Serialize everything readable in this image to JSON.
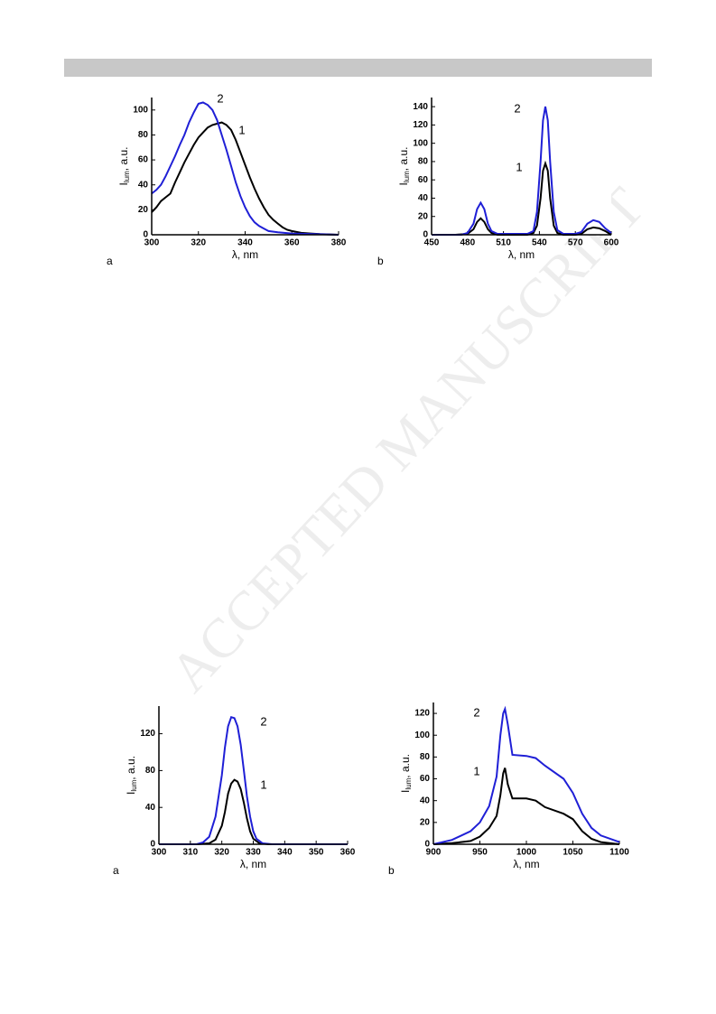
{
  "watermark": "ACCEPTED MANUSCRIPT",
  "chart_data": [
    {
      "type": "line",
      "panel": "a",
      "x_label": "λ, nm",
      "y_label": [
        "I",
        "lum",
        ", a.u."
      ],
      "xlim": [
        300,
        380
      ],
      "xticks": [
        300,
        320,
        340,
        360,
        380
      ],
      "ylim": [
        0,
        110
      ],
      "yticks": [
        0,
        20,
        40,
        60,
        80,
        100
      ],
      "series": [
        {
          "name": "1",
          "color": "#000000",
          "x": [
            300,
            302,
            304,
            306,
            308,
            310,
            312,
            314,
            316,
            318,
            320,
            322,
            324,
            326,
            328,
            330,
            332,
            334,
            336,
            338,
            340,
            342,
            344,
            346,
            348,
            350,
            352,
            354,
            356,
            358,
            360,
            364,
            368,
            372,
            380
          ],
          "values": [
            18,
            22,
            27,
            30,
            33,
            42,
            50,
            58,
            65,
            72,
            78,
            82,
            86,
            88,
            89,
            90,
            88,
            84,
            76,
            66,
            56,
            46,
            37,
            29,
            22,
            16,
            12,
            9,
            6,
            4,
            3,
            1.5,
            1,
            0.5,
            0
          ]
        },
        {
          "name": "2",
          "color": "#1f1fd6",
          "x": [
            300,
            302,
            304,
            306,
            308,
            310,
            312,
            314,
            316,
            318,
            320,
            322,
            324,
            326,
            328,
            330,
            332,
            334,
            336,
            338,
            340,
            342,
            344,
            346,
            348,
            350,
            354,
            360,
            370,
            380
          ],
          "values": [
            33,
            36,
            40,
            47,
            55,
            63,
            72,
            80,
            90,
            98,
            105,
            106,
            104,
            100,
            92,
            80,
            68,
            55,
            42,
            31,
            22,
            15,
            10,
            7,
            5,
            3,
            2,
            1,
            0.5,
            0
          ]
        }
      ]
    },
    {
      "type": "line",
      "panel": "b",
      "x_label": "λ, nm",
      "y_label": [
        "I",
        "lum",
        ", a.u."
      ],
      "xlim": [
        450,
        600
      ],
      "xticks": [
        450,
        480,
        510,
        540,
        570,
        600
      ],
      "ylim": [
        0,
        150
      ],
      "yticks": [
        0,
        20,
        40,
        60,
        80,
        100,
        120,
        140
      ],
      "series": [
        {
          "name": "1",
          "color": "#000000",
          "x": [
            450,
            470,
            480,
            485,
            488,
            491,
            494,
            497,
            500,
            505,
            530,
            535,
            538,
            541,
            543,
            545,
            547,
            549,
            552,
            555,
            560,
            570,
            575,
            580,
            585,
            590,
            595,
            600
          ],
          "values": [
            0,
            0,
            1,
            6,
            14,
            18,
            14,
            6,
            2,
            0,
            0,
            2,
            10,
            40,
            70,
            78,
            70,
            40,
            10,
            2,
            0,
            0,
            1,
            6,
            8,
            7,
            4,
            0
          ]
        },
        {
          "name": "2",
          "color": "#1f1fd6",
          "x": [
            450,
            475,
            480,
            485,
            488,
            491,
            494,
            497,
            500,
            505,
            530,
            535,
            538,
            541,
            543,
            545,
            547,
            549,
            552,
            555,
            560,
            570,
            575,
            580,
            585,
            590,
            595,
            600
          ],
          "values": [
            0,
            0,
            2,
            12,
            28,
            35,
            28,
            12,
            4,
            1,
            1,
            4,
            25,
            80,
            125,
            140,
            125,
            80,
            25,
            5,
            1,
            1,
            3,
            12,
            16,
            14,
            7,
            2
          ]
        }
      ]
    },
    {
      "type": "line",
      "panel": "a",
      "x_label": "λ, nm",
      "y_label": [
        "I",
        "lum",
        ", a.u."
      ],
      "xlim": [
        300,
        360
      ],
      "xticks": [
        300,
        310,
        320,
        330,
        340,
        350,
        360
      ],
      "ylim": [
        0,
        150
      ],
      "yticks": [
        0,
        40,
        80,
        120
      ],
      "series": [
        {
          "name": "1",
          "color": "#000000",
          "x": [
            300,
            312,
            316,
            318,
            320,
            321,
            322,
            323,
            324,
            325,
            326,
            327,
            328,
            329,
            330,
            332,
            335,
            360
          ],
          "values": [
            0,
            0,
            1,
            5,
            20,
            35,
            55,
            66,
            70,
            68,
            60,
            45,
            28,
            14,
            6,
            1,
            0,
            0
          ]
        },
        {
          "name": "2",
          "color": "#1f1fd6",
          "x": [
            300,
            312,
            314,
            316,
            318,
            320,
            321,
            322,
            323,
            324,
            325,
            326,
            327,
            328,
            329,
            330,
            331,
            333,
            336,
            360
          ],
          "values": [
            0,
            0,
            2,
            8,
            30,
            75,
            105,
            128,
            138,
            137,
            128,
            108,
            80,
            52,
            30,
            14,
            6,
            1,
            0,
            0
          ]
        }
      ]
    },
    {
      "type": "line",
      "panel": "b",
      "x_label": "λ, nm",
      "y_label": [
        "I",
        "lum",
        ", a.u."
      ],
      "xlim": [
        900,
        1100
      ],
      "xticks": [
        900,
        950,
        1000,
        1050,
        1100
      ],
      "ylim": [
        0,
        130
      ],
      "yticks": [
        0,
        20,
        40,
        60,
        80,
        100,
        120
      ],
      "series": [
        {
          "name": "1",
          "color": "#000000",
          "x": [
            900,
            920,
            940,
            950,
            960,
            968,
            972,
            975,
            977,
            980,
            985,
            1000,
            1010,
            1020,
            1040,
            1050,
            1060,
            1070,
            1080,
            1100
          ],
          "values": [
            0,
            1,
            3,
            7,
            15,
            26,
            45,
            65,
            70,
            55,
            42,
            42,
            40,
            34,
            28,
            23,
            12,
            5,
            2,
            0
          ]
        },
        {
          "name": "2",
          "color": "#1f1fd6",
          "x": [
            900,
            920,
            940,
            950,
            960,
            968,
            972,
            975,
            977,
            980,
            985,
            1000,
            1010,
            1020,
            1040,
            1050,
            1060,
            1070,
            1080,
            1100
          ],
          "values": [
            0,
            4,
            12,
            20,
            35,
            62,
            100,
            120,
            124,
            110,
            82,
            81,
            79,
            72,
            60,
            47,
            28,
            15,
            8,
            2
          ]
        }
      ]
    }
  ]
}
